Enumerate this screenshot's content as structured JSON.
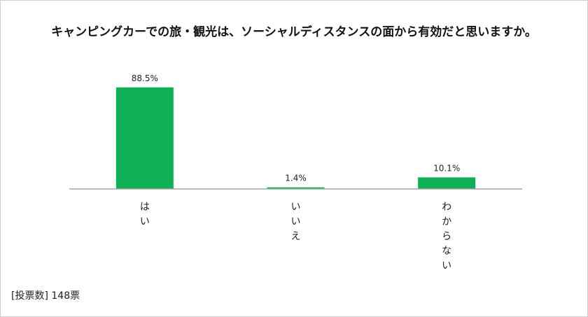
{
  "chart_data": {
    "type": "bar",
    "title": "キャンピングカーでの旅・観光は、ソーシャルディスタンスの面から有効だと思いますか。",
    "categories": [
      "はい",
      "いいえ",
      "わからない"
    ],
    "values": [
      88.5,
      1.4,
      10.1
    ],
    "value_labels": [
      "88.5%",
      "1.4%",
      "10.1%"
    ],
    "ylim": [
      0,
      100
    ],
    "grid": false,
    "legend": "none",
    "bar_color": "#0FB055",
    "axis_color": "#a6a6a6"
  },
  "footnote": "[投票数]  148票"
}
